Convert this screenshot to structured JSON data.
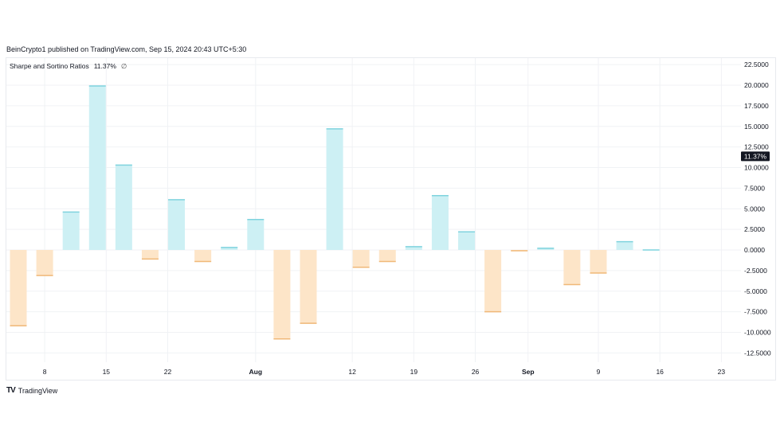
{
  "header": {
    "publisher": "BeinCrypto1 published on TradingView.com, Sep 15, 2024 20:43 UTC+5:30"
  },
  "legend": {
    "name": "Sharpe and Sortino Ratios",
    "value": "11.37%",
    "symbol": "∅"
  },
  "footer": {
    "logo": "TV",
    "brand": "TradingView"
  },
  "colors": {
    "pos_fill": "#cdf0f4",
    "pos_stroke": "#7fd3de",
    "neg_fill": "#fde5c8",
    "neg_stroke": "#f0b878",
    "grid": "#f0f2f5",
    "badge_bg": "#131722",
    "badge_fg": "#ffffff"
  },
  "chart_data": {
    "type": "bar",
    "ylim": [
      -12.5,
      22.5
    ],
    "yticks": [
      "22.5000",
      "20.0000",
      "17.5000",
      "15.0000",
      "12.5000",
      "10.0000",
      "7.5000",
      "5.0000",
      "2.5000",
      "0.0000",
      "-2.5000",
      "-5.0000",
      "-7.5000",
      "-10.0000",
      "-12.5000"
    ],
    "ytick_values": [
      22.5,
      20,
      17.5,
      15,
      12.5,
      10,
      7.5,
      5,
      2.5,
      0,
      -2.5,
      -5,
      -7.5,
      -10,
      -12.5
    ],
    "current_value": 11.37,
    "current_label": "11.37%",
    "xtick_labels": [
      "8",
      "15",
      "22",
      "Aug",
      "12",
      "19",
      "26",
      "Sep",
      "9",
      "16",
      "23"
    ],
    "xtick_bold": [
      false,
      false,
      false,
      true,
      false,
      false,
      false,
      true,
      false,
      false,
      false
    ],
    "xtick_days": [
      3,
      10,
      17,
      27,
      38,
      45,
      52,
      58,
      66,
      73,
      80
    ],
    "bar_days": [
      0,
      3,
      6,
      9,
      12,
      15,
      18,
      21,
      24,
      27,
      30,
      33,
      36,
      39,
      42,
      45,
      48,
      51,
      54,
      57,
      60,
      63,
      66,
      69,
      72
    ],
    "values": [
      -9.2,
      -3.1,
      4.6,
      19.9,
      10.3,
      -1.1,
      6.1,
      -1.4,
      0.3,
      3.7,
      -10.8,
      -8.9,
      14.7,
      -2.1,
      -1.4,
      0.4,
      6.6,
      2.2,
      -7.5,
      -0.1,
      0.2,
      -4.2,
      -2.8,
      1.0,
      0
    ],
    "xlabel": "",
    "ylabel": "",
    "grid": true
  }
}
